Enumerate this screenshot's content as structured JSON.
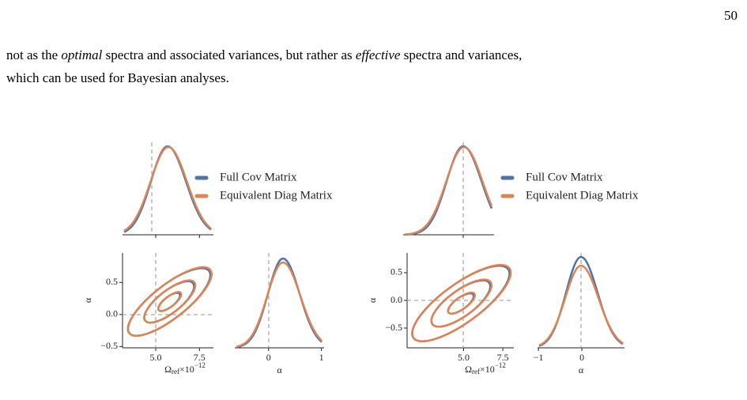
{
  "page_number": "50",
  "paragraph": {
    "line1": [
      "not as the ",
      "optimal",
      " spectra and associated variances, but rather as ",
      "effective",
      " spectra and variances,"
    ],
    "line2": "which can be used for Bayesian analyses."
  },
  "figures": [
    {
      "legend": [
        {
          "name": "Full Cov Matrix",
          "color": "#4c72b0"
        },
        {
          "name": "Equivalent Diag Matrix",
          "color": "#dd8452"
        }
      ],
      "panels": [
        {
          "xlim": [
            3.1,
            8.3
          ],
          "xticks": [
            5,
            7.5
          ],
          "tick_labels": false
        },
        {
          "xlim": [
            3.1,
            8.3
          ],
          "xticks": [
            {
              "value": 5,
              "label": "5.0"
            },
            {
              "value": 7.5,
              "label": "7.5"
            }
          ],
          "ylim": [
            -0.52,
            0.96
          ],
          "yticks": [
            {
              "value": -0.5,
              "label": "−0.5"
            },
            {
              "value": 0,
              "label": "0.0"
            },
            0.5
          ],
          "xlabel": {
            "symbol": "Ω",
            "sub": "ref",
            "times": "×10",
            "sup": "−12"
          },
          "ylabel": "α"
        },
        {
          "xlim": [
            -0.64,
            1.05
          ],
          "xticks": [
            0,
            1
          ],
          "xlabel_text": "α"
        }
      ]
    },
    {
      "legend": [
        {
          "name": "Full Cov Matrix",
          "color": "#4c72b0"
        },
        {
          "name": "Equivalent Diag Matrix",
          "color": "#dd8452"
        }
      ],
      "panels": [
        {
          "xlim": [
            1.2,
            6.95
          ],
          "xticks": [
            5
          ],
          "tick_labels": false
        },
        {
          "xlim": [
            1.4,
            8.2
          ],
          "xticks": [
            {
              "value": 5,
              "label": "5.0"
            },
            {
              "value": 7.5,
              "label": "7.5"
            }
          ],
          "ylim": [
            -0.857,
            0.857
          ],
          "yticks": [
            {
              "value": -0.5,
              "label": "−0.5"
            },
            {
              "value": 0,
              "label": "0.0"
            },
            0.5
          ],
          "xlabel": {
            "symbol": "Ω",
            "sub": "ref",
            "times": "×10",
            "sup": "−12"
          },
          "ylabel": "α"
        },
        {
          "xlim": [
            -1.02,
            0.98
          ],
          "xticks": [
            {
              "value": -1,
              "label": "−1"
            },
            0
          ],
          "xlabel_text": "α"
        }
      ]
    }
  ]
}
